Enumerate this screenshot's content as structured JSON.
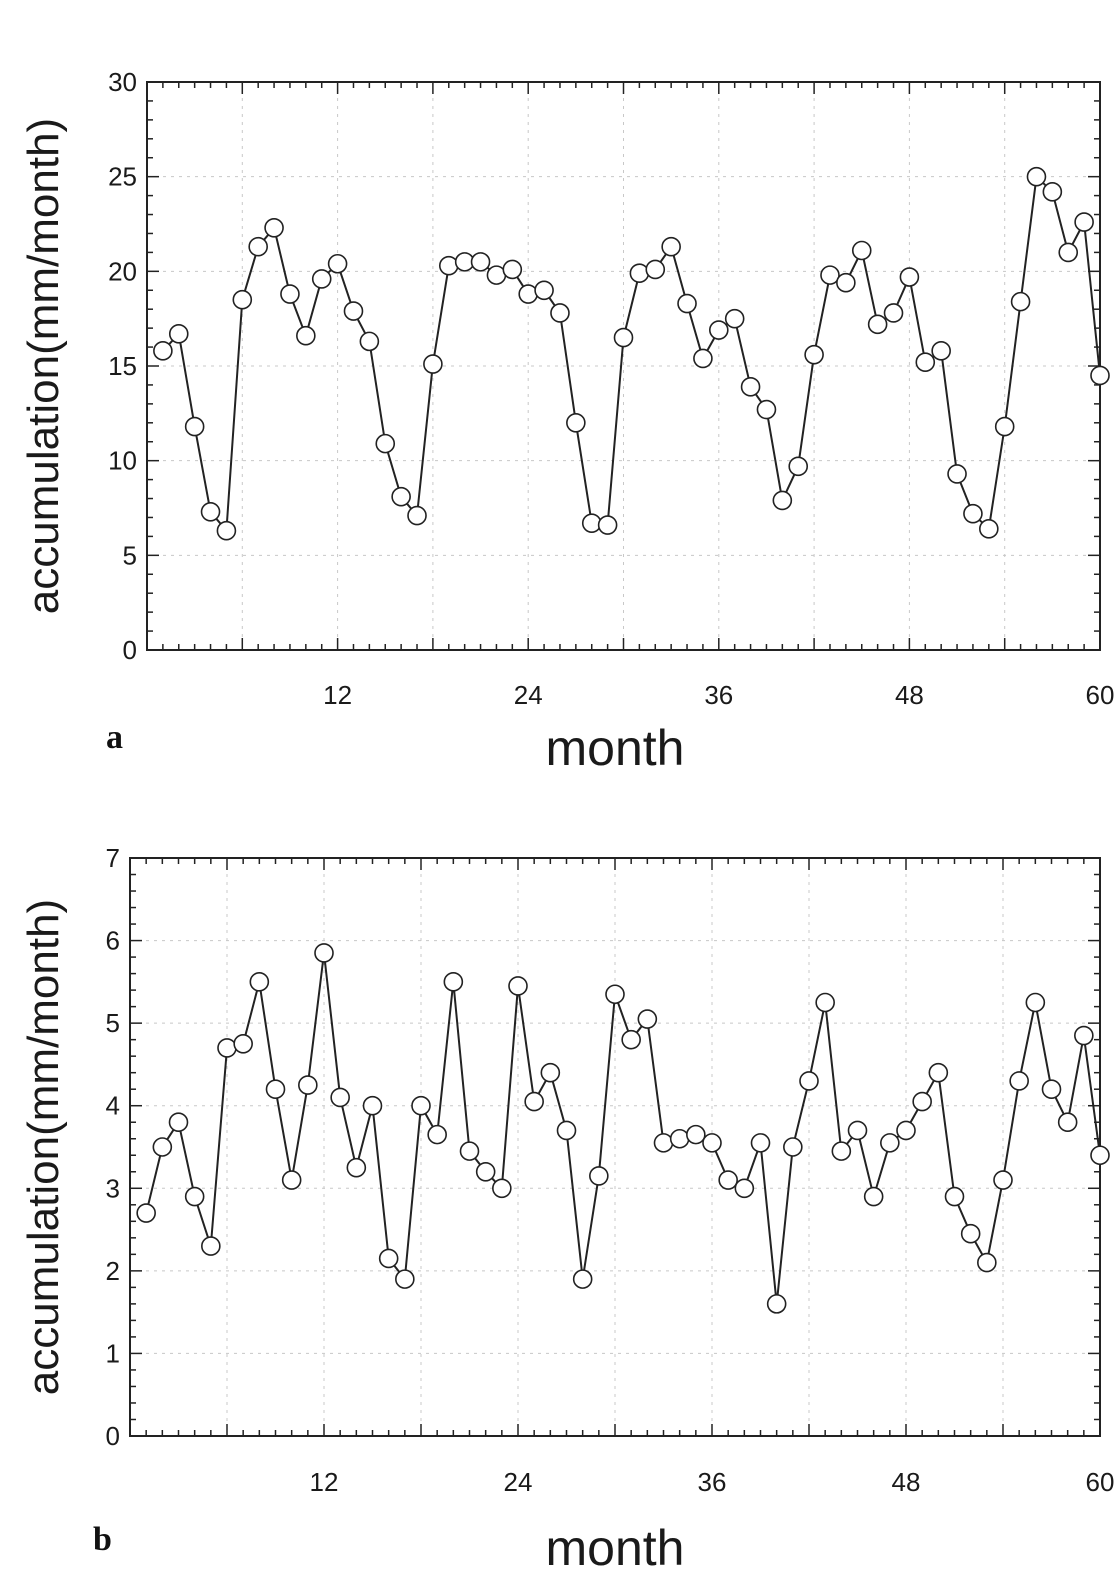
{
  "chart_data": [
    {
      "type": "line",
      "panel_label": "a",
      "xlabel": "month",
      "ylabel": "accumulation(mm/month)",
      "xlim": [
        0,
        60
      ],
      "ylim": [
        0,
        30
      ],
      "xticks": [
        12,
        24,
        36,
        48,
        60
      ],
      "yticks": [
        0,
        5,
        10,
        15,
        20,
        25,
        30
      ],
      "grid": true,
      "x": [
        1,
        2,
        3,
        4,
        5,
        6,
        7,
        8,
        9,
        10,
        11,
        12,
        13,
        14,
        15,
        16,
        17,
        18,
        19,
        20,
        21,
        22,
        23,
        24,
        25,
        26,
        27,
        28,
        29,
        30,
        31,
        32,
        33,
        34,
        35,
        36,
        37,
        38,
        39,
        40,
        41,
        42,
        43,
        44,
        45,
        46,
        47,
        48,
        49,
        50,
        51,
        52,
        53,
        54,
        55,
        56,
        57,
        58,
        59,
        60
      ],
      "y": [
        15.8,
        16.7,
        11.8,
        7.3,
        6.3,
        18.5,
        21.3,
        22.3,
        18.8,
        16.6,
        19.6,
        20.4,
        17.9,
        16.3,
        10.9,
        8.1,
        7.1,
        15.1,
        20.3,
        20.5,
        20.5,
        19.8,
        20.1,
        18.8,
        19.0,
        17.8,
        12.0,
        6.7,
        6.6,
        16.5,
        19.9,
        20.1,
        21.3,
        18.3,
        15.4,
        16.9,
        17.5,
        13.9,
        12.7,
        7.9,
        9.7,
        15.6,
        19.8,
        19.4,
        21.1,
        17.2,
        17.8,
        19.7,
        15.2,
        15.8,
        9.3,
        7.2,
        6.4,
        11.8,
        18.4,
        25.0,
        24.2,
        21.0,
        22.6,
        14.5
      ]
    },
    {
      "type": "line",
      "panel_label": "b",
      "xlabel": "month",
      "ylabel": "accumulation(mm/month)",
      "xlim": [
        0,
        60
      ],
      "ylim": [
        0,
        7
      ],
      "xticks": [
        12,
        24,
        36,
        48,
        60
      ],
      "yticks": [
        0,
        1,
        2,
        3,
        4,
        5,
        6,
        7
      ],
      "grid": true,
      "x": [
        1,
        2,
        3,
        4,
        5,
        6,
        7,
        8,
        9,
        10,
        11,
        12,
        13,
        14,
        15,
        16,
        17,
        18,
        19,
        20,
        21,
        22,
        23,
        24,
        25,
        26,
        27,
        28,
        29,
        30,
        31,
        32,
        33,
        34,
        35,
        36,
        37,
        38,
        39,
        40,
        41,
        42,
        43,
        44,
        45,
        46,
        47,
        48,
        49,
        50,
        51,
        52,
        53,
        54,
        55,
        56,
        57,
        58,
        59,
        60
      ],
      "y": [
        2.7,
        3.5,
        3.8,
        2.9,
        2.3,
        4.7,
        4.75,
        5.5,
        4.2,
        3.1,
        4.25,
        5.85,
        4.1,
        3.25,
        4.0,
        2.15,
        1.9,
        4.0,
        3.65,
        5.5,
        3.45,
        3.2,
        3.0,
        5.45,
        4.05,
        4.4,
        3.7,
        1.9,
        3.15,
        5.35,
        4.8,
        5.05,
        3.55,
        3.6,
        3.65,
        3.55,
        3.1,
        3.0,
        3.55,
        1.6,
        3.5,
        4.3,
        5.25,
        3.45,
        3.7,
        2.9,
        3.55,
        3.7,
        4.05,
        4.4,
        2.9,
        2.45,
        2.1,
        3.1,
        4.3,
        5.25,
        4.2,
        3.8,
        4.85,
        3.4
      ]
    }
  ]
}
